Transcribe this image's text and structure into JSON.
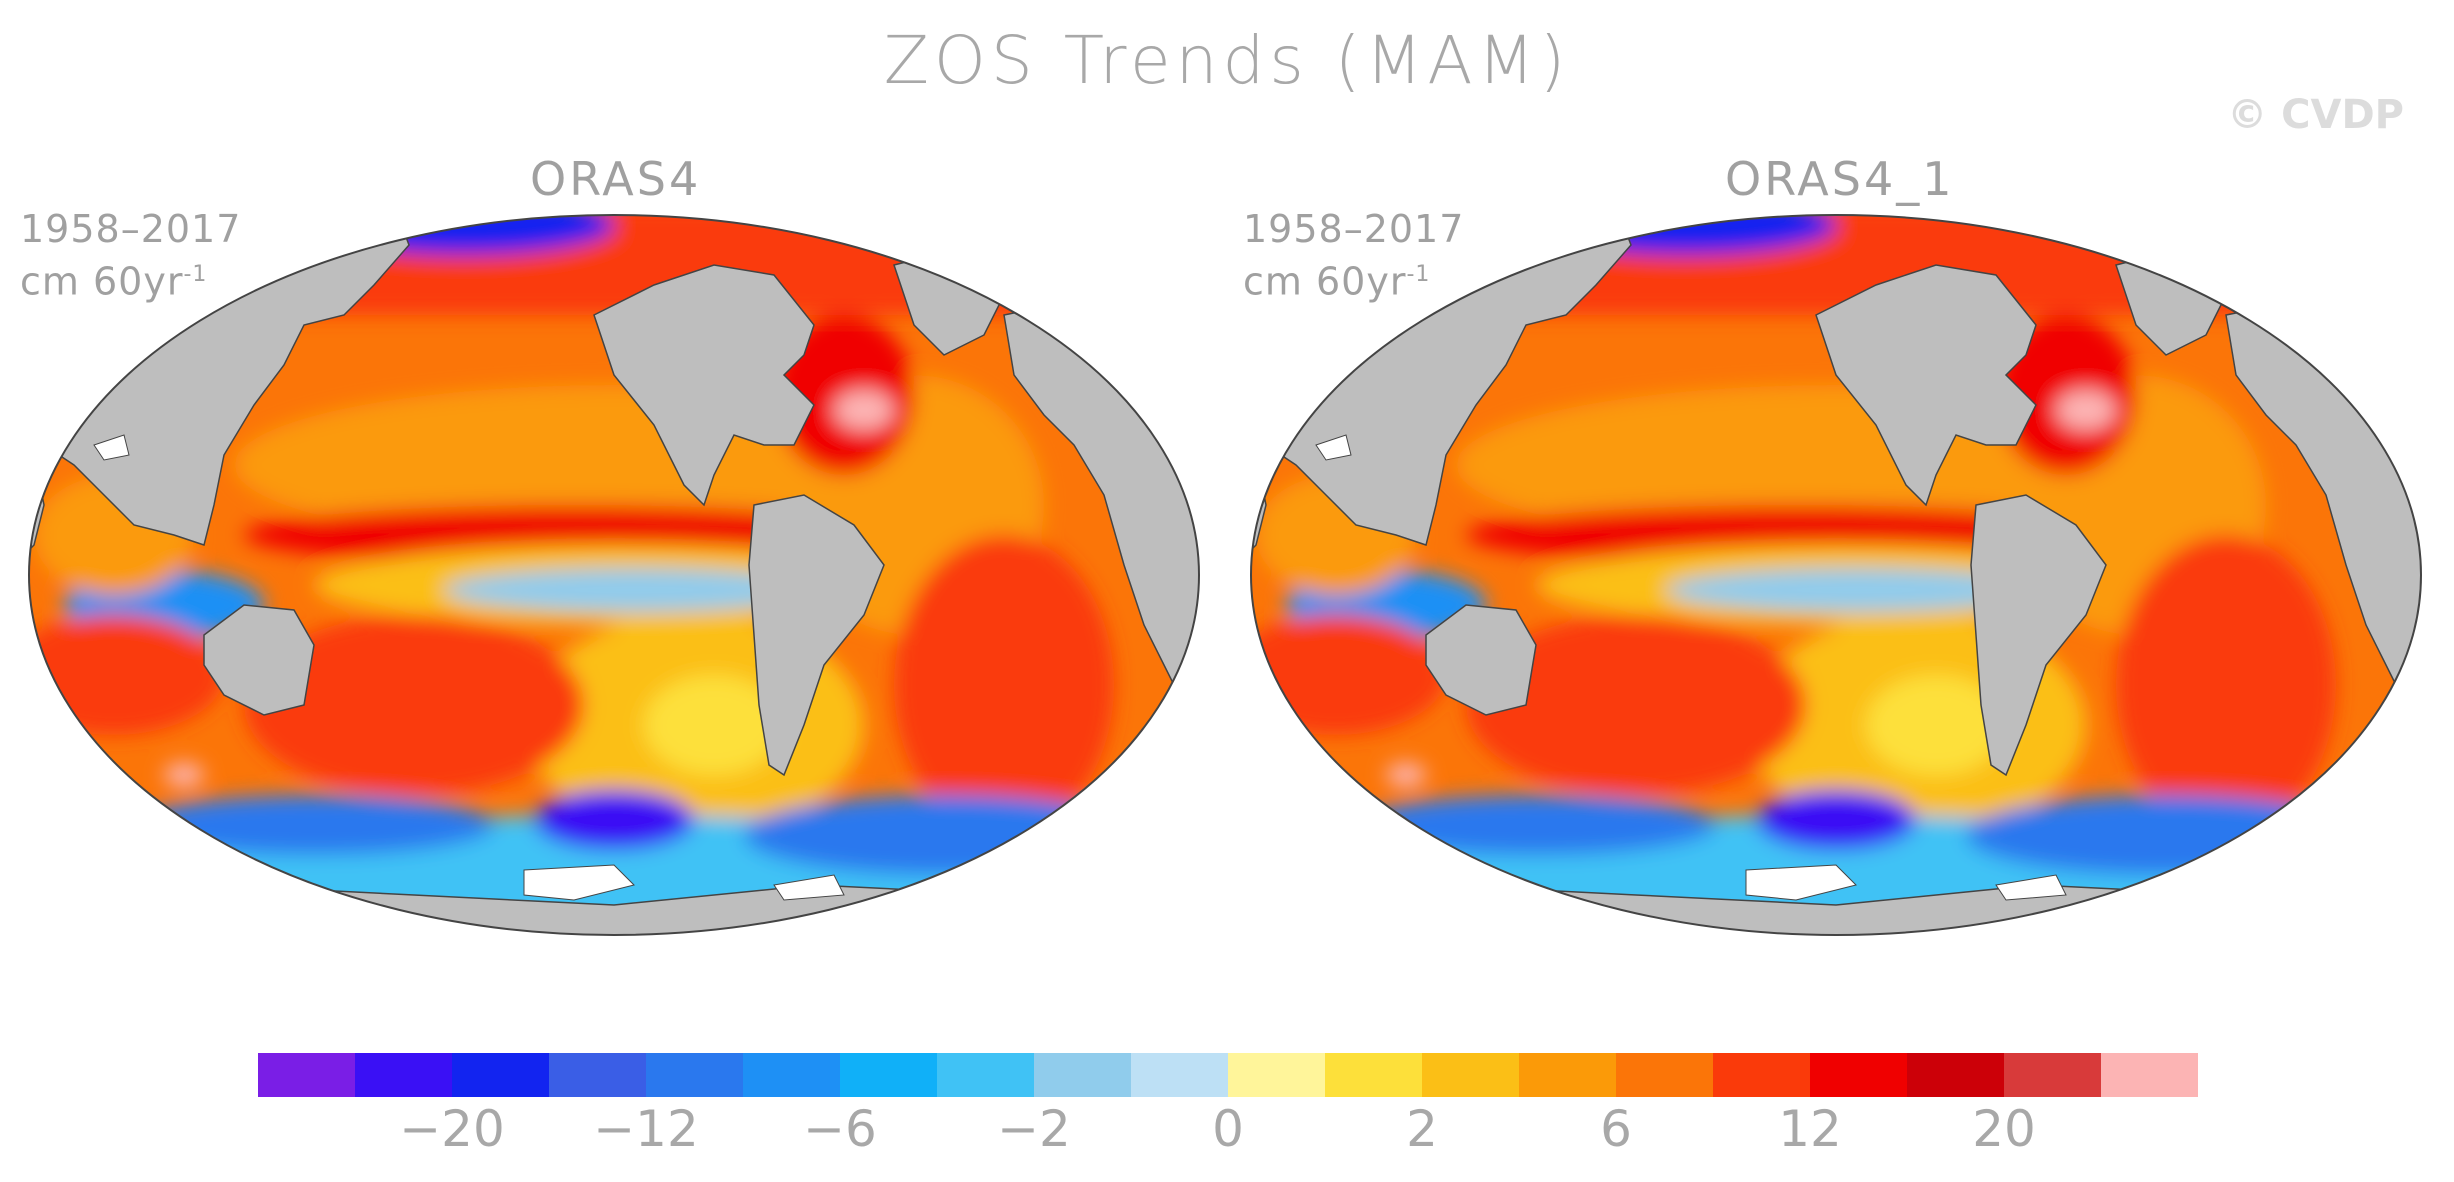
{
  "title": "ZOS Trends (MAM)",
  "watermark": "© CVDP",
  "panels": [
    {
      "name": "ORAS4",
      "period": "1958–2017",
      "units": "cm 60yr",
      "units_exp": "-1"
    },
    {
      "name": "ORAS4_1",
      "period": "1958–2017",
      "units": "cm 60yr",
      "units_exp": "-1"
    }
  ],
  "colorbar": {
    "colors": [
      "#7a1ee6",
      "#3a10f5",
      "#1224f0",
      "#3a5ee6",
      "#2a78ee",
      "#1e90f5",
      "#10b0f8",
      "#40c2f5",
      "#90ccec",
      "#bde0f5",
      "#fff59a",
      "#fde03a",
      "#fbbf16",
      "#fb9a08",
      "#fb7508",
      "#fa3a0a",
      "#f00000",
      "#cc0008",
      "#d83a3a",
      "#fcb4b4"
    ],
    "labels": [
      "−20",
      "−12",
      "−6",
      "−2",
      "0",
      "2",
      "6",
      "12",
      "20"
    ]
  },
  "colors": {
    "land": "#bebebe",
    "ice": "#ffffff",
    "coast": "#444444"
  }
}
